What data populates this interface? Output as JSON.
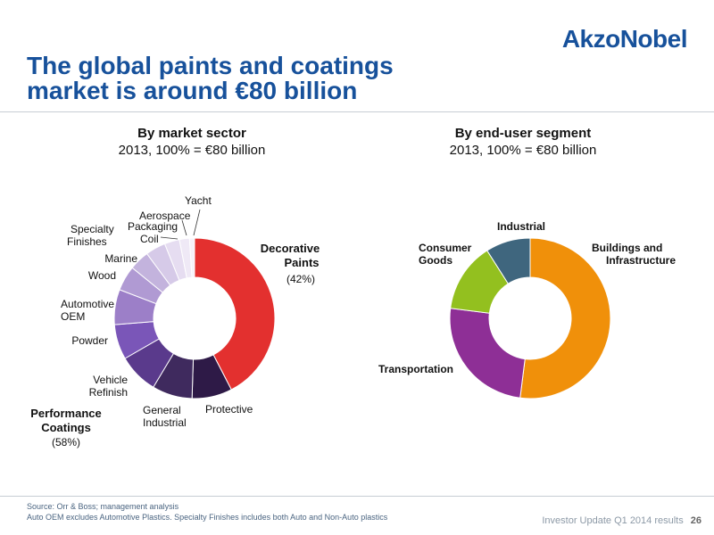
{
  "brand": {
    "logo_text": "AkzoNobel"
  },
  "slide": {
    "title_line1": "The global paints and coatings",
    "title_line2": "market is around €80 billion"
  },
  "footer": {
    "source_line1": "Source: Orr & Boss; management analysis",
    "source_line2": "Auto OEM excludes Automotive Plastics. Specialty Finishes includes both Auto and Non-Auto plastics",
    "deck_label": "Investor Update Q1 2014 results",
    "page_number": "26"
  },
  "chart_data": [
    {
      "type": "pie",
      "variant": "donut",
      "title": "By market sector",
      "subtitle": "2013, 100% = €80 billion",
      "total": 80,
      "unit": "€ billion",
      "slices": [
        {
          "label": "Decorative Paints",
          "value": 42,
          "color": "#e3302f"
        },
        {
          "label": "Protective",
          "value": 8,
          "color": "#2e1a47"
        },
        {
          "label": "General Industrial",
          "value": 8,
          "color": "#3f2a5e"
        },
        {
          "label": "Vehicle Refinish",
          "value": 8,
          "color": "#5a3a8c"
        },
        {
          "label": "Powder",
          "value": 7,
          "color": "#7a56b8"
        },
        {
          "label": "Automotive OEM",
          "value": 7,
          "color": "#9c7fc8"
        },
        {
          "label": "Wood",
          "value": 5,
          "color": "#b09ad3"
        },
        {
          "label": "Marine",
          "value": 4,
          "color": "#c3b3dd"
        },
        {
          "label": "Specialty Finishes",
          "value": 4,
          "color": "#d6cae8"
        },
        {
          "label": "Packaging Coil",
          "value": 3,
          "color": "#e6ddf1"
        },
        {
          "label": "Aerospace",
          "value": 2,
          "color": "#efe9f6"
        },
        {
          "label": "Yacht",
          "value": 1,
          "color": "#f6f2fa"
        }
      ],
      "group_labels": [
        {
          "label": "Decorative Paints",
          "share": "(42%)"
        },
        {
          "label": "Performance Coatings",
          "share": "(58%)"
        }
      ]
    },
    {
      "type": "pie",
      "variant": "donut",
      "title": "By end-user segment",
      "subtitle": "2013, 100% = €80 billion",
      "total": 80,
      "unit": "€ billion",
      "slices": [
        {
          "label": "Buildings and Infrastructure",
          "value": 52,
          "color": "#f0900a"
        },
        {
          "label": "Transportation",
          "value": 25,
          "color": "#8e2f96"
        },
        {
          "label": "Consumer Goods",
          "value": 14,
          "color": "#93c01f"
        },
        {
          "label": "Industrial",
          "value": 9,
          "color": "#3f667e"
        }
      ]
    }
  ]
}
